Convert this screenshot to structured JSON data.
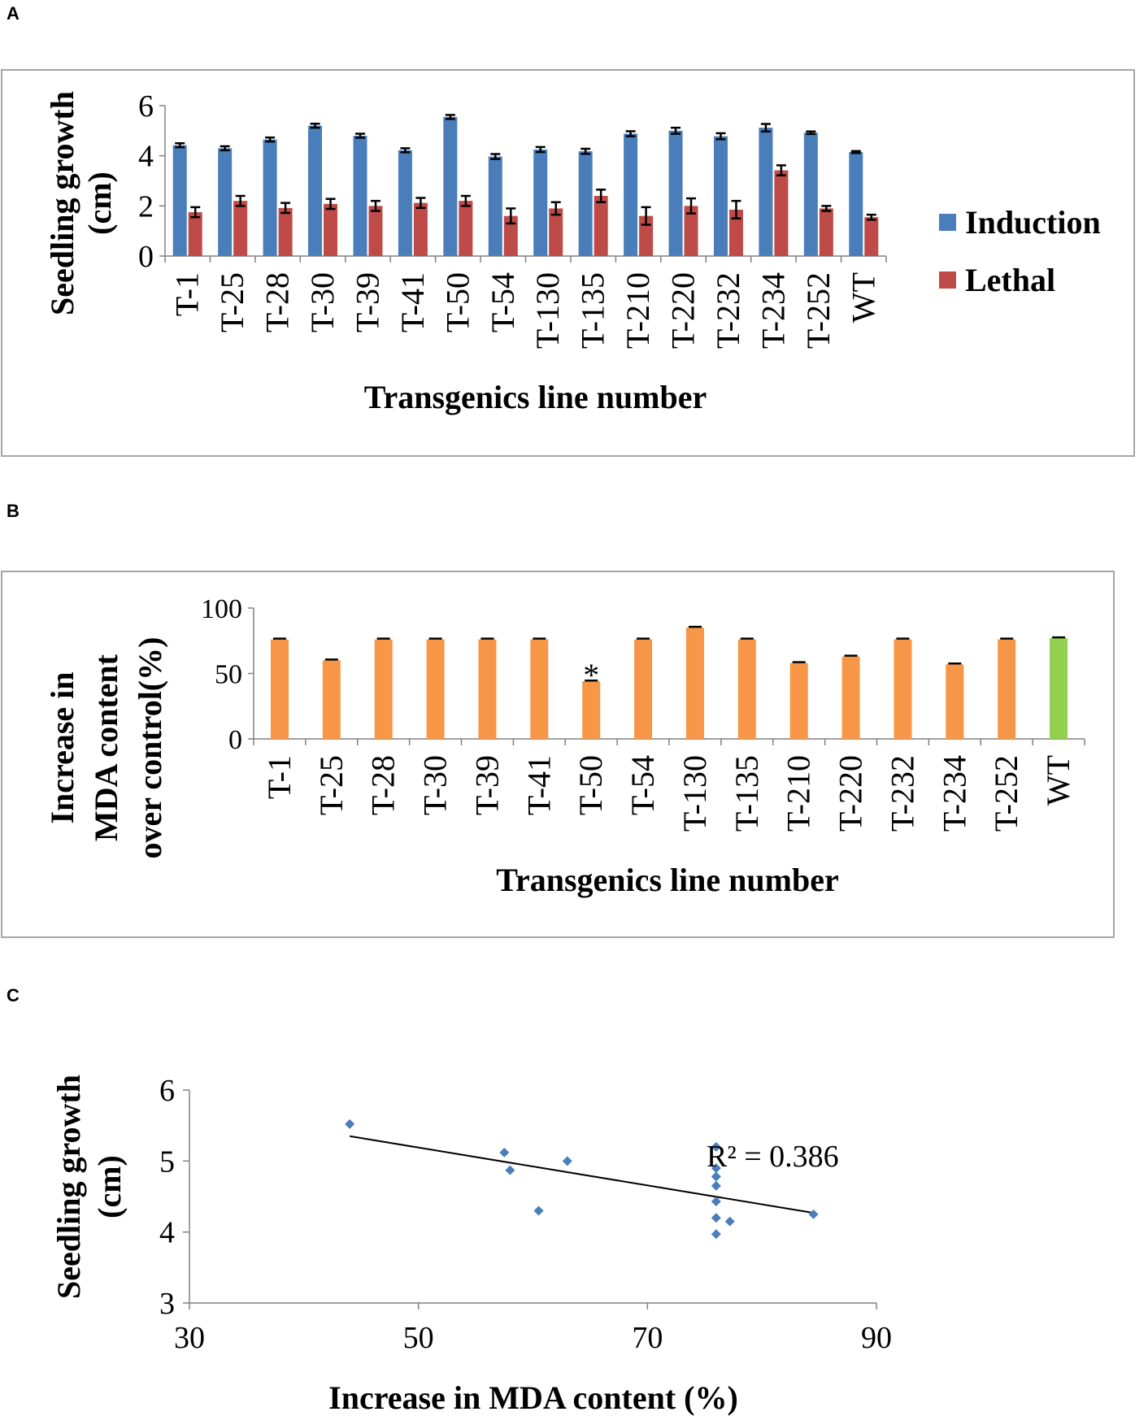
{
  "panels": {
    "a": "A",
    "b": "B",
    "c": "C"
  },
  "chart_data": [
    {
      "id": "A",
      "type": "bar",
      "title": "",
      "xlabel": "Transgenics line number",
      "ylabel": "Seedling growth (cm)",
      "ylabel_lines": [
        "Seedling growth",
        "(cm)"
      ],
      "ylim": [
        0,
        6
      ],
      "yticks": [
        0,
        2,
        4,
        6
      ],
      "legend_position": "right",
      "categories": [
        "T-1",
        "T-25",
        "T-28",
        "T-30",
        "T-39",
        "T-41",
        "T-50",
        "T-54",
        "T-130",
        "T-135",
        "T-210",
        "T-220",
        "T-232",
        "T-234",
        "T-252",
        "WT"
      ],
      "series": [
        {
          "name": "Induction",
          "color": "#4a7ebb",
          "values": [
            4.42,
            4.3,
            4.65,
            5.2,
            4.8,
            4.22,
            5.55,
            3.97,
            4.25,
            4.18,
            4.88,
            5.0,
            4.78,
            5.12,
            4.92,
            4.15
          ],
          "errors": [
            0.08,
            0.08,
            0.08,
            0.08,
            0.08,
            0.08,
            0.08,
            0.1,
            0.1,
            0.1,
            0.1,
            0.12,
            0.12,
            0.15,
            0.05,
            0.04
          ]
        },
        {
          "name": "Lethal",
          "color": "#be4b48",
          "values": [
            1.75,
            2.2,
            1.92,
            2.08,
            2.0,
            2.12,
            2.2,
            1.6,
            1.9,
            2.4,
            1.6,
            2.0,
            1.85,
            3.42,
            1.9,
            1.55
          ],
          "errors": [
            0.2,
            0.2,
            0.2,
            0.2,
            0.2,
            0.2,
            0.2,
            0.3,
            0.25,
            0.25,
            0.35,
            0.3,
            0.35,
            0.2,
            0.1,
            0.1
          ]
        }
      ]
    },
    {
      "id": "B",
      "type": "bar",
      "title": "",
      "xlabel": "Transgenics line number",
      "ylabel": "Increase in MDA content over control(%)",
      "ylabel_lines": [
        "Increase in",
        "MDA content",
        "over control(%)"
      ],
      "ylim": [
        0,
        100
      ],
      "yticks": [
        0,
        50,
        100
      ],
      "categories": [
        "T-1",
        "T-25",
        "T-28",
        "T-30",
        "T-39",
        "T-41",
        "T-50",
        "T-54",
        "T-130",
        "T-135",
        "T-210",
        "T-220",
        "T-232",
        "T-234",
        "T-252",
        "WT"
      ],
      "values": [
        76,
        60,
        76,
        76,
        76,
        76,
        44,
        76,
        85,
        76,
        58,
        63,
        76,
        57,
        76,
        77
      ],
      "errors": [
        0.6,
        0.6,
        0.6,
        0.6,
        0.6,
        0.6,
        0.6,
        0.6,
        0.6,
        0.6,
        0.6,
        0.6,
        0.6,
        0.6,
        0.6,
        0.6
      ],
      "colors": {
        "default": "#f79646",
        "WT": "#92d050"
      },
      "annotations": [
        {
          "category": "T-50",
          "text": "*"
        }
      ]
    },
    {
      "id": "C",
      "type": "scatter",
      "title": "",
      "xlabel": "Increase in MDA content (%)",
      "ylabel": "Seedling growth (cm)",
      "ylabel_lines": [
        "Seedling growth",
        "(cm)"
      ],
      "xlim": [
        30,
        90
      ],
      "ylim": [
        3,
        6
      ],
      "xticks": [
        30,
        50,
        70,
        90
      ],
      "yticks": [
        3,
        4,
        5,
        6
      ],
      "marker_color": "#4a7ebb",
      "points": [
        {
          "x": 44,
          "y": 5.52
        },
        {
          "x": 57.5,
          "y": 5.12
        },
        {
          "x": 58,
          "y": 4.87
        },
        {
          "x": 60.5,
          "y": 4.3
        },
        {
          "x": 63,
          "y": 5.0
        },
        {
          "x": 76,
          "y": 5.2
        },
        {
          "x": 76,
          "y": 4.9
        },
        {
          "x": 76,
          "y": 4.78
        },
        {
          "x": 76,
          "y": 4.65
        },
        {
          "x": 76,
          "y": 4.43
        },
        {
          "x": 76,
          "y": 4.2
        },
        {
          "x": 76,
          "y": 3.97
        },
        {
          "x": 77.2,
          "y": 4.15
        },
        {
          "x": 84.5,
          "y": 4.25
        }
      ],
      "trendline": {
        "x1": 44,
        "y1": 5.35,
        "x2": 84.5,
        "y2": 4.27,
        "color": "#000000"
      },
      "r2_label": "R² = 0.386"
    }
  ]
}
